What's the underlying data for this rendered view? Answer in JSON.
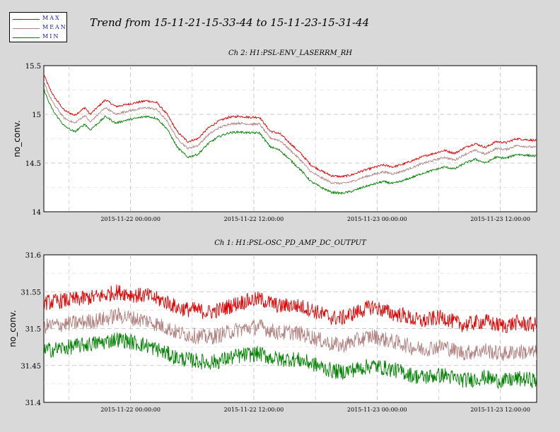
{
  "title": "Trend from 15-11-21-15-33-44 to 15-11-23-15-31-44",
  "legend": [
    {
      "label": "MAX",
      "color": "#e00000"
    },
    {
      "label": "MEAN",
      "color": "#b08080"
    },
    {
      "label": "MIN",
      "color": "#008000"
    }
  ],
  "chart_data": [
    {
      "type": "line",
      "title": "Ch 2: H1:PSL-ENV_LASERRM_RH",
      "ylabel": "no_conv.",
      "ylim": [
        14,
        15.5
      ],
      "yticks": [
        "14",
        "14.5",
        "15",
        "15.5"
      ],
      "xrange_hours": [
        0,
        47.97
      ],
      "xticks": [
        {
          "label": "2015-11-22 00:00:00",
          "hours": 8.44
        },
        {
          "label": "2015-11-22 12:00:00",
          "hours": 20.44
        },
        {
          "label": "2015-11-23 00:00:00",
          "hours": 32.44
        },
        {
          "label": "2015-11-23 12:00:00",
          "hours": 44.44
        }
      ],
      "minor_xticks_hours": [
        2.44,
        14.44,
        26.44,
        38.44
      ],
      "noise": 0.012,
      "series": [
        {
          "name": "MAX",
          "color": "#e00000",
          "x": [
            0,
            0.5,
            1,
            2,
            3,
            4,
            4.5,
            5.5,
            6,
            7,
            8,
            9,
            10,
            11,
            12,
            13,
            14,
            15,
            16,
            17,
            18,
            19,
            20,
            21,
            22,
            23,
            24,
            25,
            26,
            27,
            28,
            29,
            30,
            31,
            32,
            33,
            34,
            35,
            36,
            37,
            38,
            39,
            40,
            41,
            42,
            43,
            44,
            45,
            46,
            47,
            47.97
          ],
          "y": [
            15.41,
            15.28,
            15.18,
            15.04,
            14.99,
            15.07,
            15.0,
            15.1,
            15.15,
            15.08,
            15.1,
            15.12,
            15.14,
            15.12,
            15.0,
            14.82,
            14.72,
            14.75,
            14.86,
            14.93,
            14.97,
            14.98,
            14.97,
            14.97,
            14.83,
            14.8,
            14.7,
            14.6,
            14.48,
            14.42,
            14.37,
            14.36,
            14.38,
            14.42,
            14.45,
            14.48,
            14.46,
            14.49,
            14.53,
            14.57,
            14.6,
            14.63,
            14.6,
            14.66,
            14.7,
            14.66,
            14.72,
            14.71,
            14.75,
            14.74,
            14.73
          ]
        },
        {
          "name": "MEAN",
          "color": "#b08080",
          "x": [
            0,
            0.5,
            1,
            2,
            3,
            4,
            4.5,
            5.5,
            6,
            7,
            8,
            9,
            10,
            11,
            12,
            13,
            14,
            15,
            16,
            17,
            18,
            19,
            20,
            21,
            22,
            23,
            24,
            25,
            26,
            27,
            28,
            29,
            30,
            31,
            32,
            33,
            34,
            35,
            36,
            37,
            38,
            39,
            40,
            41,
            42,
            43,
            44,
            45,
            46,
            47,
            47.97
          ],
          "y": [
            15.33,
            15.2,
            15.1,
            14.96,
            14.91,
            14.99,
            14.92,
            15.02,
            15.07,
            15.0,
            15.03,
            15.05,
            15.07,
            15.05,
            14.93,
            14.75,
            14.65,
            14.68,
            14.79,
            14.86,
            14.9,
            14.91,
            14.9,
            14.9,
            14.76,
            14.73,
            14.63,
            14.53,
            14.41,
            14.35,
            14.3,
            14.29,
            14.31,
            14.35,
            14.38,
            14.41,
            14.39,
            14.42,
            14.46,
            14.5,
            14.53,
            14.56,
            14.53,
            14.59,
            14.63,
            14.59,
            14.65,
            14.64,
            14.68,
            14.67,
            14.66
          ]
        },
        {
          "name": "MIN",
          "color": "#008000",
          "x": [
            0,
            0.5,
            1,
            2,
            3,
            4,
            4.5,
            5.5,
            6,
            7,
            8,
            9,
            10,
            11,
            12,
            13,
            14,
            15,
            16,
            17,
            18,
            19,
            20,
            21,
            22,
            23,
            24,
            25,
            26,
            27,
            28,
            29,
            30,
            31,
            32,
            33,
            34,
            35,
            36,
            37,
            38,
            39,
            40,
            41,
            42,
            43,
            44,
            45,
            46,
            47,
            47.97
          ],
          "y": [
            15.26,
            15.12,
            15.02,
            14.88,
            14.82,
            14.9,
            14.84,
            14.93,
            14.98,
            14.91,
            14.94,
            14.96,
            14.98,
            14.96,
            14.85,
            14.66,
            14.56,
            14.59,
            14.7,
            14.77,
            14.81,
            14.82,
            14.81,
            14.81,
            14.67,
            14.63,
            14.53,
            14.43,
            14.31,
            14.25,
            14.2,
            14.19,
            14.21,
            14.25,
            14.28,
            14.31,
            14.29,
            14.32,
            14.36,
            14.4,
            14.43,
            14.46,
            14.44,
            14.5,
            14.54,
            14.5,
            14.56,
            14.55,
            14.59,
            14.58,
            14.57
          ]
        }
      ]
    },
    {
      "type": "line",
      "title": "Ch 1: H1:PSL-OSC_PD_AMP_DC_OUTPUT",
      "ylabel": "no_conv.",
      "ylim": [
        31.4,
        31.6
      ],
      "yticks": [
        "31.4",
        "31.45",
        "31.5",
        "31.55",
        "31.6"
      ],
      "xrange_hours": [
        0,
        47.97
      ],
      "xticks": [
        {
          "label": "2015-11-22 00:00:00",
          "hours": 8.44
        },
        {
          "label": "2015-11-22 12:00:00",
          "hours": 20.44
        },
        {
          "label": "2015-11-23 00:00:00",
          "hours": 32.44
        },
        {
          "label": "2015-11-23 12:00:00",
          "hours": 44.44
        }
      ],
      "minor_xticks_hours": [
        2.44,
        14.44,
        26.44,
        38.44
      ],
      "noise": 0.009,
      "series": [
        {
          "name": "MAX",
          "color": "#e00000",
          "x": [
            0,
            2,
            4,
            6,
            7,
            8,
            9,
            10,
            11,
            12,
            13,
            14,
            15,
            16,
            17,
            18,
            19,
            20,
            21,
            22,
            23,
            24,
            25,
            26,
            27,
            28,
            29,
            30,
            31,
            32,
            33,
            34,
            35,
            36,
            37,
            38,
            39,
            40,
            41,
            42,
            43,
            44,
            45,
            46,
            47,
            47.97
          ],
          "y": [
            31.535,
            31.538,
            31.541,
            31.545,
            31.55,
            31.548,
            31.545,
            31.545,
            31.54,
            31.536,
            31.528,
            31.526,
            31.525,
            31.522,
            31.525,
            31.53,
            31.535,
            31.538,
            31.54,
            31.535,
            31.53,
            31.532,
            31.53,
            31.526,
            31.52,
            31.515,
            31.514,
            31.52,
            31.525,
            31.53,
            31.525,
            31.52,
            31.518,
            31.512,
            31.51,
            31.514,
            31.515,
            31.508,
            31.505,
            31.508,
            31.51,
            31.505,
            31.504,
            31.508,
            31.506,
            31.505
          ]
        },
        {
          "name": "MEAN",
          "color": "#b08080",
          "x": [
            0,
            2,
            4,
            6,
            7,
            8,
            9,
            10,
            11,
            12,
            13,
            14,
            15,
            16,
            17,
            18,
            19,
            20,
            21,
            22,
            23,
            24,
            25,
            26,
            27,
            28,
            29,
            30,
            31,
            32,
            33,
            34,
            35,
            36,
            37,
            38,
            39,
            40,
            41,
            42,
            43,
            44,
            45,
            46,
            47,
            47.97
          ],
          "y": [
            31.503,
            31.506,
            31.509,
            31.513,
            31.518,
            31.516,
            31.513,
            31.511,
            31.506,
            31.501,
            31.494,
            31.492,
            31.49,
            31.488,
            31.491,
            31.495,
            31.499,
            31.501,
            31.503,
            31.498,
            31.494,
            31.495,
            31.493,
            31.489,
            31.484,
            31.479,
            31.477,
            31.482,
            31.486,
            31.49,
            31.486,
            31.482,
            31.479,
            31.474,
            31.472,
            31.475,
            31.476,
            31.47,
            31.467,
            31.469,
            31.471,
            31.467,
            31.466,
            31.469,
            31.468,
            31.467
          ]
        },
        {
          "name": "MIN",
          "color": "#008000",
          "x": [
            0,
            2,
            4,
            6,
            7,
            8,
            9,
            10,
            11,
            12,
            13,
            14,
            15,
            16,
            17,
            18,
            19,
            20,
            21,
            22,
            23,
            24,
            25,
            26,
            27,
            28,
            29,
            30,
            31,
            32,
            33,
            34,
            35,
            36,
            37,
            38,
            39,
            40,
            41,
            42,
            43,
            44,
            45,
            46,
            47,
            47.97
          ],
          "y": [
            31.47,
            31.474,
            31.478,
            31.482,
            31.486,
            31.484,
            31.48,
            31.477,
            31.472,
            31.466,
            31.46,
            31.458,
            31.456,
            31.454,
            31.456,
            31.46,
            31.463,
            31.465,
            31.466,
            31.461,
            31.458,
            31.459,
            31.457,
            31.453,
            31.448,
            31.443,
            31.441,
            31.444,
            31.447,
            31.45,
            31.447,
            31.444,
            31.441,
            31.436,
            31.434,
            31.436,
            31.437,
            31.432,
            31.43,
            31.432,
            31.434,
            31.43,
            31.429,
            31.432,
            31.431,
            31.43
          ]
        }
      ]
    }
  ]
}
